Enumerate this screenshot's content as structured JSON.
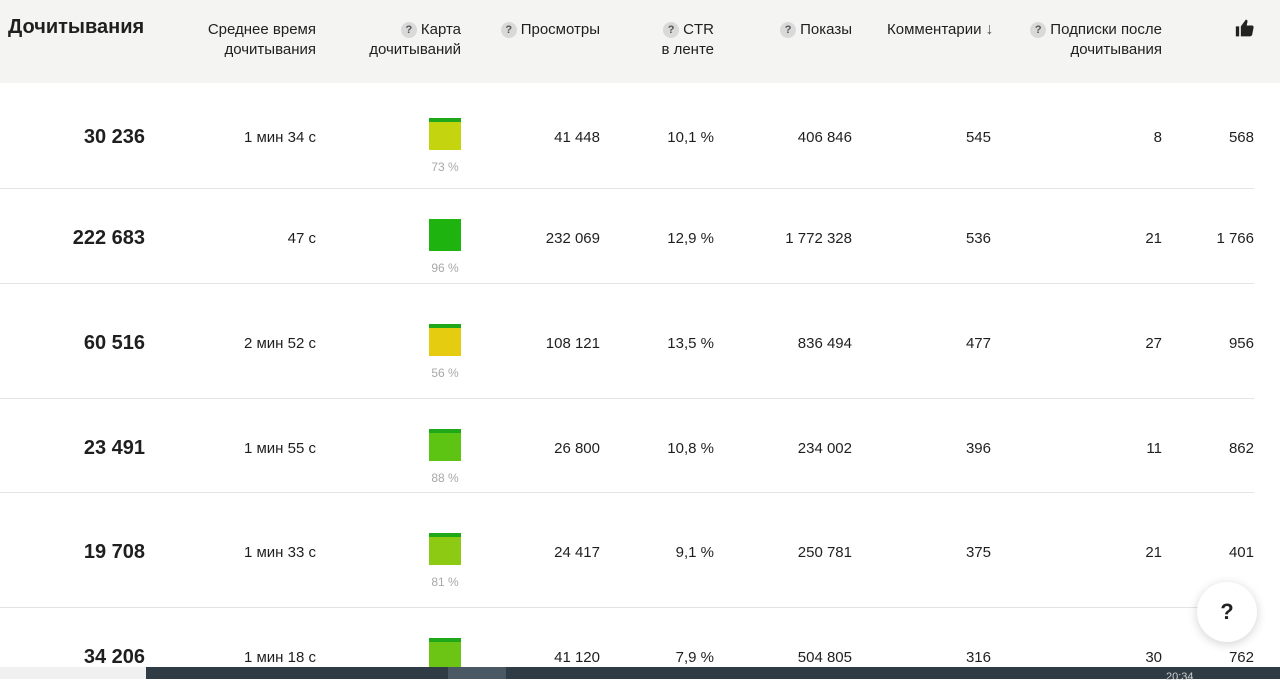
{
  "header": {
    "title": "Дочитывания",
    "avg_time": [
      "Среднее время",
      "дочитывания"
    ],
    "heatmap": [
      "Карта",
      "дочитываний"
    ],
    "views": "Просмотры",
    "ctr": [
      "CTR",
      "в ленте"
    ],
    "impressions": "Показы",
    "comments": "Комментарии",
    "subs": [
      "Подписки после",
      "дочитывания"
    ],
    "help_mark": "?",
    "sort_arrow": "↓"
  },
  "rows": [
    {
      "reads": "30 236",
      "avg_time": "1 мин 34 с",
      "heat_pct": "73 %",
      "heat_color": "#c4d40e",
      "views": "41 448",
      "ctr": "10,1 %",
      "impressions": "406 846",
      "comments": "545",
      "subs": "8",
      "likes": "568"
    },
    {
      "reads": "222 683",
      "avg_time": "47 с",
      "heat_pct": "96 %",
      "heat_color": "#1fb310",
      "views": "232 069",
      "ctr": "12,9 %",
      "impressions": "1 772 328",
      "comments": "536",
      "subs": "21",
      "likes": "1 766"
    },
    {
      "reads": "60 516",
      "avg_time": "2 мин 52 с",
      "heat_pct": "56 %",
      "heat_color": "#e6cc10",
      "views": "108 121",
      "ctr": "13,5 %",
      "impressions": "836 494",
      "comments": "477",
      "subs": "27",
      "likes": "956"
    },
    {
      "reads": "23 491",
      "avg_time": "1 мин 55 с",
      "heat_pct": "88 %",
      "heat_color": "#5ec414",
      "views": "26 800",
      "ctr": "10,8 %",
      "impressions": "234 002",
      "comments": "396",
      "subs": "11",
      "likes": "862"
    },
    {
      "reads": "19 708",
      "avg_time": "1 мин 33 с",
      "heat_pct": "81 %",
      "heat_color": "#8cca14",
      "views": "24 417",
      "ctr": "9,1 %",
      "impressions": "250 781",
      "comments": "375",
      "subs": "21",
      "likes": "401"
    },
    {
      "reads": "34 206",
      "avg_time": "1 мин 18 с",
      "heat_pct": "",
      "heat_color": "#6cc414",
      "views": "41 120",
      "ctr": "7,9 %",
      "impressions": "504 805",
      "comments": "316",
      "subs": "30",
      "likes": "762"
    }
  ],
  "help_button": "?",
  "taskbar_clock": "20:34"
}
